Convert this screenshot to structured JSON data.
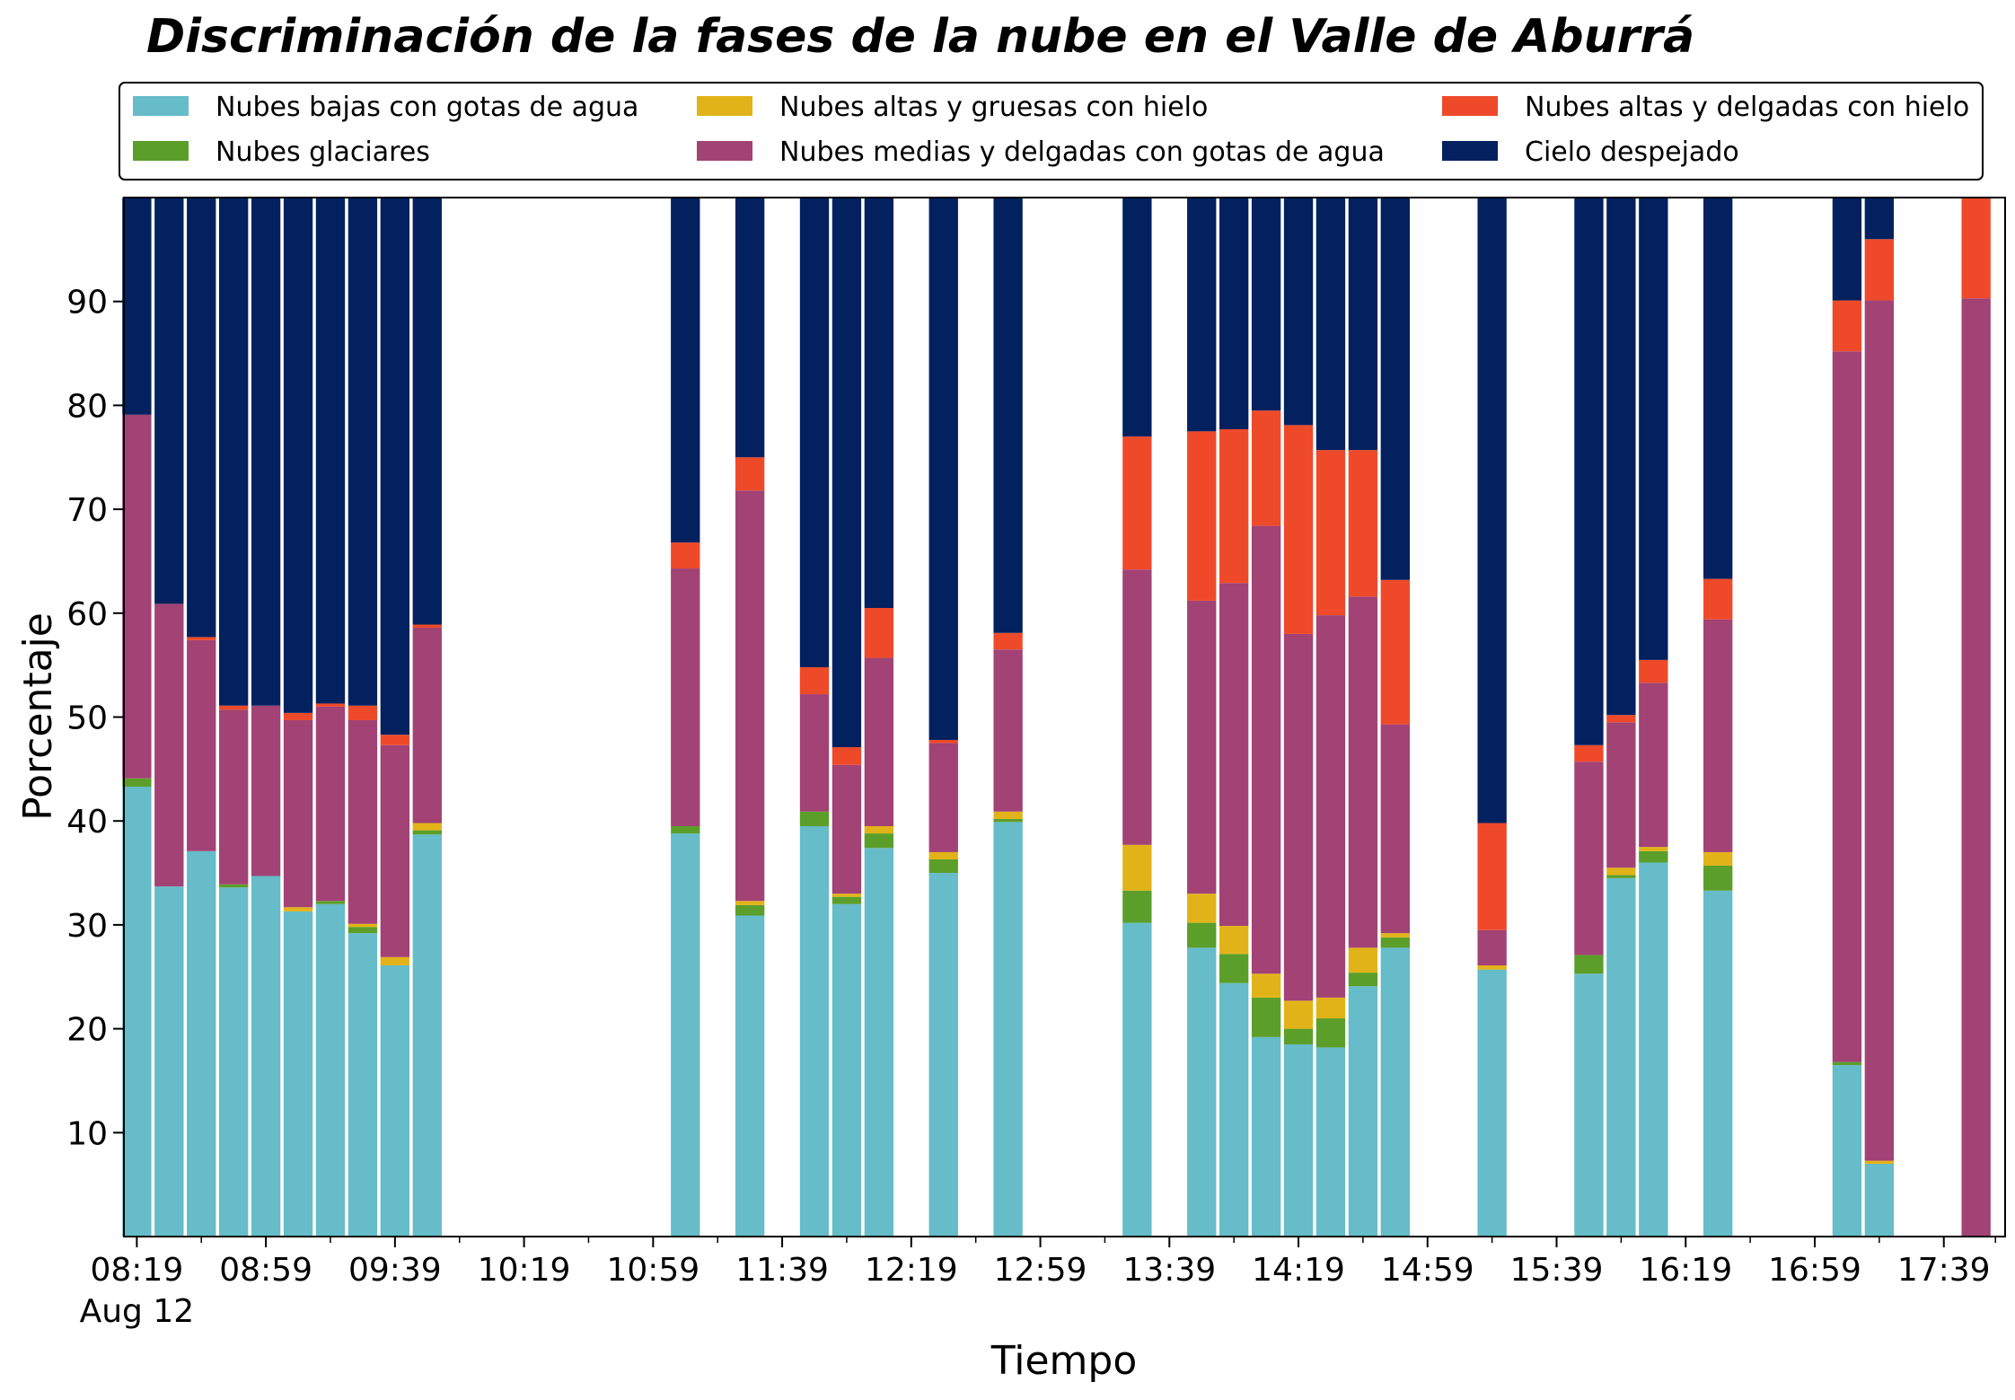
{
  "chart_data": {
    "type": "bar",
    "stacked": true,
    "title": "Discriminación de la fases de la nube en el Valle de Aburrá",
    "xlabel": "Tiempo",
    "ylabel": "Porcentaje",
    "ylim": [
      0,
      100
    ],
    "yticks": [
      10,
      20,
      30,
      40,
      50,
      60,
      70,
      80,
      90
    ],
    "x_range_minutes": [
      495,
      1078
    ],
    "bar_width_minutes": 9,
    "xticks": [
      {
        "minute": 499,
        "label": "08:19",
        "sublabel": "Aug 12"
      },
      {
        "minute": 539,
        "label": "08:59"
      },
      {
        "minute": 579,
        "label": "09:39"
      },
      {
        "minute": 619,
        "label": "10:19"
      },
      {
        "minute": 659,
        "label": "10:59"
      },
      {
        "minute": 699,
        "label": "11:39"
      },
      {
        "minute": 739,
        "label": "12:19"
      },
      {
        "minute": 779,
        "label": "12:59"
      },
      {
        "minute": 819,
        "label": "13:39"
      },
      {
        "minute": 859,
        "label": "14:19"
      },
      {
        "minute": 899,
        "label": "14:59"
      },
      {
        "minute": 939,
        "label": "15:39"
      },
      {
        "minute": 979,
        "label": "16:19"
      },
      {
        "minute": 1019,
        "label": "16:59"
      },
      {
        "minute": 1059,
        "label": "17:39"
      }
    ],
    "minor_xticks": [
      519,
      559,
      599,
      639,
      679,
      719,
      759,
      799,
      839,
      879,
      919,
      959,
      999,
      1039,
      1075
    ],
    "legend_placement": "top",
    "categories": [
      499,
      509,
      519,
      529,
      539,
      549,
      559,
      569,
      579,
      589,
      669,
      689,
      709,
      719,
      729,
      749,
      769,
      809,
      829,
      839,
      849,
      859,
      869,
      879,
      889,
      919,
      949,
      959,
      969,
      989,
      1029,
      1039,
      1069
    ],
    "series": [
      {
        "name": "Nubes bajas con gotas de agua",
        "color": "#66BCC8",
        "values": [
          43.3,
          33.7,
          37.1,
          33.6,
          34.7,
          31.3,
          32,
          29.2,
          26.1,
          38.7,
          38.8,
          30.9,
          39.5,
          32,
          37.4,
          35,
          39.9,
          30.2,
          27.8,
          24.4,
          19.2,
          18.5,
          18.2,
          24.1,
          27.8,
          25.7,
          25.3,
          34.5,
          36,
          33.3,
          16.5,
          7,
          0
        ]
      },
      {
        "name": "Nubes glaciares",
        "color": "#5B9F2A",
        "values": [
          0.8,
          0,
          0,
          0.3,
          0,
          0,
          0.3,
          0.6,
          0,
          0.4,
          0.7,
          1,
          1.4,
          0.7,
          1.4,
          1.3,
          0.3,
          3.1,
          2.4,
          2.8,
          3.8,
          1.5,
          2.8,
          1.3,
          1,
          0,
          1.8,
          0.3,
          1.1,
          2.4,
          0.3,
          0,
          0
        ]
      },
      {
        "name": "Nubes altas y gruesas con hielo",
        "color": "#E2B318",
        "values": [
          0,
          0,
          0,
          0,
          0,
          0.4,
          0,
          0.3,
          0.8,
          0.7,
          0,
          0.4,
          0,
          0.3,
          0.7,
          0.7,
          0.7,
          4.4,
          2.8,
          2.7,
          2.3,
          2.7,
          2,
          2.4,
          0.4,
          0.4,
          0,
          0.7,
          0.4,
          1.3,
          0,
          0.3,
          0
        ]
      },
      {
        "name": "Nubes medias y delgadas con gotas de agua",
        "color": "#A24275",
        "values": [
          35,
          27.2,
          20.3,
          16.8,
          16.4,
          18,
          18.7,
          19.6,
          20.4,
          18.8,
          24.8,
          39.5,
          11.3,
          12.4,
          16.2,
          10.5,
          15.6,
          26.5,
          28.2,
          33,
          43.1,
          35.3,
          36.8,
          33.8,
          20.1,
          3.4,
          18.6,
          14,
          15.8,
          22.4,
          68.4,
          82.8,
          90.3
        ]
      },
      {
        "name": "Nubes altas y delgadas con hielo",
        "color": "#EE4A2A",
        "values": [
          0,
          0,
          0.3,
          0.4,
          0,
          0.7,
          0.3,
          1.4,
          1,
          0.3,
          2.5,
          3.2,
          2.6,
          1.7,
          4.8,
          0.3,
          1.6,
          12.8,
          16.3,
          14.8,
          11.1,
          20.1,
          15.9,
          14.1,
          13.9,
          10.3,
          1.6,
          0.7,
          2.2,
          3.9,
          4.9,
          5.9,
          9.7
        ]
      },
      {
        "name": "Cielo despejado",
        "color": "#03215F",
        "values": [
          20.9,
          39.1,
          42.3,
          48.9,
          48.9,
          49.6,
          48.7,
          48.9,
          51.7,
          41.1,
          33.2,
          25,
          45.2,
          52.9,
          39.5,
          52.2,
          41.9,
          23,
          22.5,
          22.3,
          20.5,
          21.9,
          24.3,
          24.3,
          36.8,
          60.2,
          52.7,
          49.8,
          44.5,
          36.7,
          9.9,
          4,
          0
        ]
      }
    ]
  }
}
